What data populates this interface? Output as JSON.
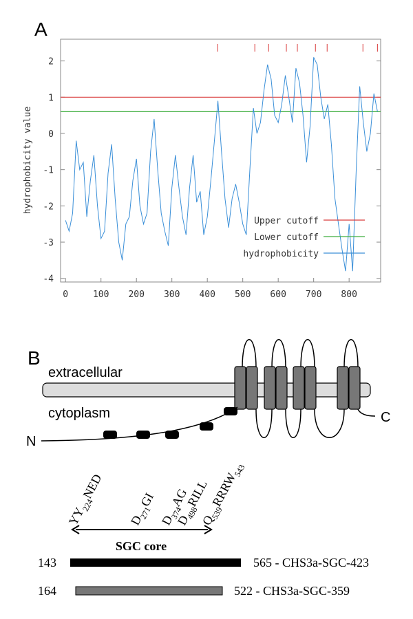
{
  "chart_data": {
    "type": "line",
    "panel_label": "A",
    "ylabel": "hydrophobicity value",
    "xlim": [
      -14,
      889
    ],
    "ylim": [
      -4.1,
      2.6
    ],
    "xticks": [
      0,
      100,
      200,
      300,
      400,
      500,
      600,
      700,
      800
    ],
    "yticks": [
      -4,
      -3,
      -2,
      -1,
      0,
      1,
      2
    ],
    "legend": "lower right",
    "cutoffs": [
      {
        "name": "Upper cutoff",
        "color": "#d93a3a",
        "value": 1
      },
      {
        "name": "Lower cutoff",
        "color": "#3fae3f",
        "value": 0.6
      }
    ],
    "tm_markers": [
      429,
      534,
      573,
      623,
      654,
      705,
      738,
      839,
      880
    ],
    "tm_marker_color": "#d93a3a",
    "series": [
      {
        "name": "hydrophobicity",
        "color": "#3a8fd8",
        "x": [
          0,
          10,
          20,
          30,
          40,
          50,
          60,
          70,
          80,
          90,
          100,
          110,
          120,
          130,
          140,
          150,
          160,
          170,
          180,
          190,
          200,
          210,
          220,
          230,
          240,
          250,
          260,
          270,
          280,
          290,
          300,
          310,
          320,
          330,
          340,
          350,
          360,
          370,
          380,
          390,
          400,
          410,
          420,
          430,
          440,
          450,
          460,
          470,
          480,
          490,
          500,
          510,
          520,
          530,
          540,
          550,
          560,
          570,
          580,
          590,
          600,
          610,
          620,
          630,
          640,
          650,
          660,
          670,
          680,
          690,
          700,
          710,
          720,
          730,
          740,
          750,
          760,
          770,
          780,
          790,
          800,
          810,
          820,
          830,
          840,
          850,
          860,
          870,
          880
        ],
        "values": [
          -2.4,
          -2.7,
          -2.2,
          -0.2,
          -1,
          -0.8,
          -2.3,
          -1.3,
          -0.6,
          -2,
          -2.9,
          -2.7,
          -1.1,
          -0.3,
          -1.8,
          -3,
          -3.5,
          -2.5,
          -2.3,
          -1.3,
          -0.7,
          -2,
          -2.5,
          -2.2,
          -0.5,
          0.4,
          -1,
          -2.2,
          -2.7,
          -3.1,
          -1.5,
          -0.6,
          -1.5,
          -2.3,
          -2.8,
          -1.5,
          -0.6,
          -1.9,
          -1.6,
          -2.8,
          -2.3,
          -1.3,
          -0.2,
          0.9,
          -0.5,
          -1.8,
          -2.6,
          -1.8,
          -1.4,
          -1.9,
          -2.5,
          -2.8,
          -1,
          0.7,
          0,
          0.3,
          1.2,
          1.9,
          1.5,
          0.5,
          0.3,
          0.8,
          1.6,
          1,
          0.3,
          1.8,
          1.4,
          0.5,
          -0.8,
          0.2,
          2.1,
          1.9,
          1,
          0.4,
          0.8,
          -0.3,
          -1.8,
          -2.5,
          -3.2,
          -3.8,
          -2.5,
          -3.8,
          -1,
          1.3,
          0.3,
          -0.5,
          0,
          1.1,
          0.6
        ]
      }
    ]
  },
  "diagram": {
    "panel_label": "B",
    "extracellular": "extracellular",
    "cytoplasm": "cytoplasm",
    "n_term": "N",
    "c_term": "C",
    "motifs": [
      [
        "YY",
        "224",
        "NED"
      ],
      [
        "D",
        "271",
        "GI"
      ],
      [
        "D",
        "374",
        "AG"
      ],
      [
        "D",
        "498",
        "RILL"
      ],
      [
        "Q",
        "539",
        "RRRW",
        "543"
      ]
    ],
    "core_label": "SGC core",
    "constructs": [
      {
        "start": "143",
        "end": "565 - CHS3a-SGC-423"
      },
      {
        "start": "164",
        "end": "522 -  CHS3a-SGC-359"
      }
    ]
  }
}
